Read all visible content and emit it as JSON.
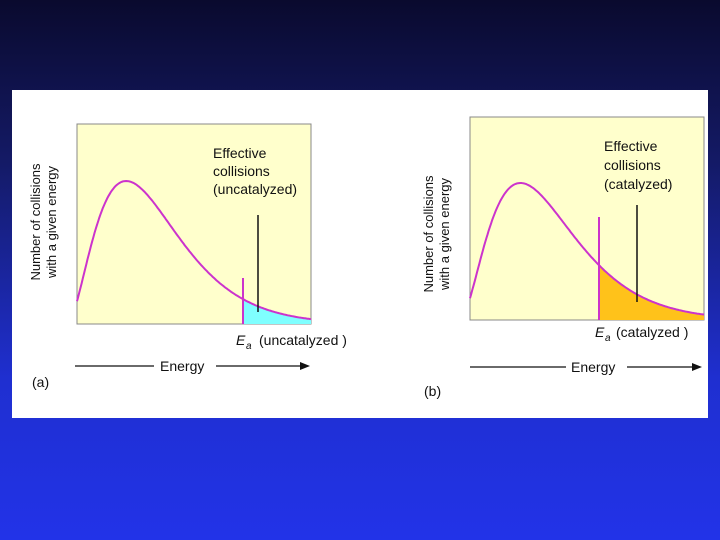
{
  "panel_a": {
    "letter": "(a)",
    "y_label_line1": "Number of collisions",
    "y_label_line2": "with a given energy",
    "annotation_line1": "Effective",
    "annotation_line2": "collisions",
    "annotation_line3": "(uncatalyzed)",
    "ea_symbol": "E",
    "ea_subscript": "a",
    "ea_label": "(uncatalyzed )",
    "x_label": "Energy",
    "fill_color": "#7fffff"
  },
  "panel_b": {
    "letter": "(b)",
    "y_label_line1": "Number of collisions",
    "y_label_line2": "with a given energy",
    "annotation_line1": "Effective",
    "annotation_line2": "collisions",
    "annotation_line3": "(catalyzed)",
    "ea_symbol": "E",
    "ea_subscript": "a",
    "ea_label": "(catalyzed )",
    "x_label": "Energy",
    "fill_color": "#ffc21a"
  },
  "colors": {
    "plot_background": "#ffffcc",
    "curve": "#cc33cc",
    "background_top": "#0a0a2e",
    "background_bottom": "#2233e8"
  }
}
